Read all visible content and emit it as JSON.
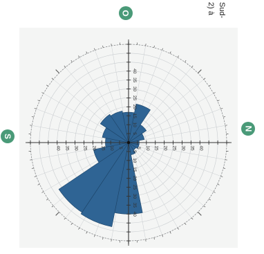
{
  "caption": {
    "line1": "Sud-",
    "line2": "2) à"
  },
  "badges": {
    "color": "#4a9a78",
    "top": "O",
    "left": "S",
    "right": "N"
  },
  "style": {
    "bar_color": "#2f6494",
    "bar_stroke": "#1d4468",
    "grid_color": "#c9cdd0",
    "axis_color": "#333333"
  },
  "chart_data": {
    "type": "rose",
    "title": "",
    "sector_width_deg": 22.5,
    "grid": true,
    "rmax": 55,
    "ring_step": 5,
    "labeled_rings": [
      5,
      10,
      15,
      20,
      25,
      30,
      35,
      40
    ],
    "sectors": [
      {
        "center_deg": 0,
        "value": 13
      },
      {
        "center_deg": 22.5,
        "value": 15
      },
      {
        "center_deg": 45,
        "value": 19
      },
      {
        "center_deg": 67.5,
        "value": 18
      },
      {
        "center_deg": 90,
        "value": 17
      },
      {
        "center_deg": 112.5,
        "value": 22
      },
      {
        "center_deg": 135,
        "value": 12
      },
      {
        "center_deg": 157.5,
        "value": 9
      },
      {
        "center_deg": 180,
        "value": 6
      },
      {
        "center_deg": 202.5,
        "value": 6
      },
      {
        "center_deg": 225,
        "value": 5
      },
      {
        "center_deg": 247.5,
        "value": 7
      },
      {
        "center_deg": 270,
        "value": 40
      },
      {
        "center_deg": 292.5,
        "value": 48
      },
      {
        "center_deg": 315,
        "value": 47
      },
      {
        "center_deg": 337.5,
        "value": 20
      }
    ]
  }
}
